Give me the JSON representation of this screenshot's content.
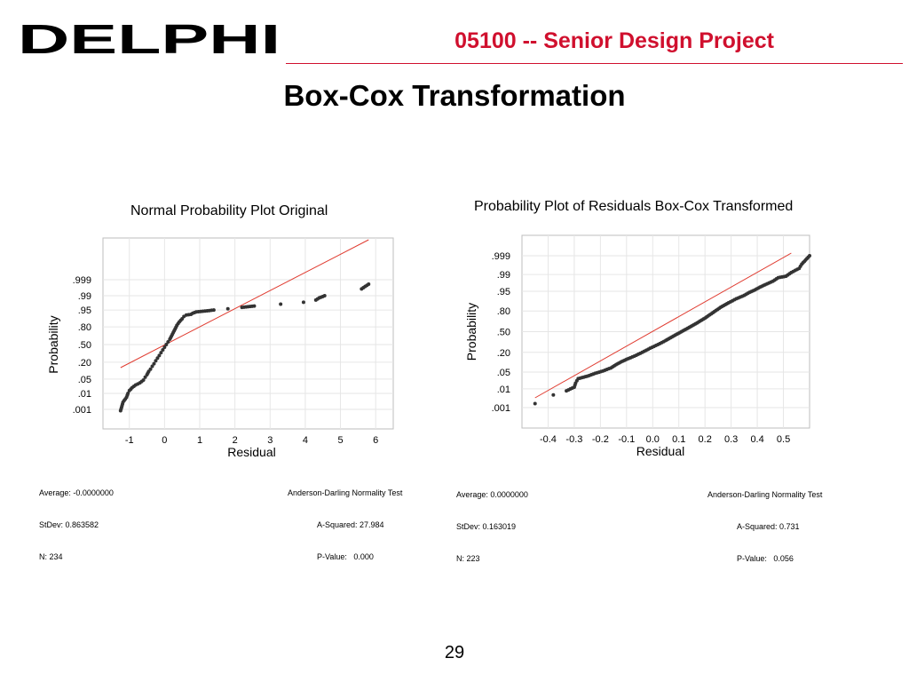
{
  "header": {
    "brand": "DELPHI",
    "brand_color": "#000000",
    "project_title": "05100 -- Senior Design Project",
    "accent_color": "#d0102e"
  },
  "slide": {
    "title": "Box-Cox Transformation",
    "page_number": "29"
  },
  "chart_data": [
    {
      "type": "scatter",
      "title": "Normal Probability Plot Original",
      "xlabel": "Residual",
      "ylabel": "Probability",
      "y_scale": "normal-probability",
      "xlim": [
        -1.75,
        6.5
      ],
      "x_ticks": [
        -1,
        0,
        1,
        2,
        3,
        4,
        5,
        6
      ],
      "x_tick_labels": [
        "-1",
        "0",
        "1",
        "2",
        "3",
        "4",
        "5",
        "6"
      ],
      "y_ticks": [
        0.001,
        0.01,
        0.05,
        0.2,
        0.5,
        0.8,
        0.95,
        0.99,
        0.999
      ],
      "y_tick_labels": [
        ".001",
        ".01",
        ".05",
        ".20",
        ".50",
        ".80",
        ".95",
        ".99",
        ".999"
      ],
      "grid": true,
      "fit_line": {
        "color": "#e03c31",
        "x": [
          -1.25,
          5.8
        ]
      },
      "n": 234,
      "point_color": "#333333",
      "points": [
        [
          -1.25,
          0.0008
        ],
        [
          -1.18,
          0.003
        ],
        [
          -1.08,
          0.006
        ],
        [
          -1.04,
          0.01
        ],
        [
          -1.0,
          0.014
        ],
        [
          -0.92,
          0.02
        ],
        [
          -0.82,
          0.027
        ],
        [
          -0.7,
          0.034
        ],
        [
          -0.6,
          0.045
        ],
        [
          -0.55,
          0.06
        ],
        [
          -0.5,
          0.075
        ],
        [
          -0.45,
          0.1
        ],
        [
          -0.4,
          0.12
        ],
        [
          -0.35,
          0.15
        ],
        [
          -0.3,
          0.18
        ],
        [
          -0.25,
          0.22
        ],
        [
          -0.2,
          0.26
        ],
        [
          -0.15,
          0.3
        ],
        [
          -0.1,
          0.35
        ],
        [
          -0.05,
          0.4
        ],
        [
          0.0,
          0.45
        ],
        [
          0.05,
          0.5
        ],
        [
          0.1,
          0.55
        ],
        [
          0.15,
          0.6
        ],
        [
          0.2,
          0.66
        ],
        [
          0.25,
          0.72
        ],
        [
          0.3,
          0.77
        ],
        [
          0.35,
          0.82
        ],
        [
          0.42,
          0.86
        ],
        [
          0.5,
          0.89
        ],
        [
          0.55,
          0.91
        ],
        [
          0.62,
          0.92
        ],
        [
          0.75,
          0.925
        ],
        [
          0.8,
          0.932
        ],
        [
          0.9,
          0.94
        ],
        [
          1.15,
          0.945
        ],
        [
          1.4,
          0.95
        ],
        [
          1.8,
          0.956
        ],
        [
          2.2,
          0.962
        ],
        [
          2.55,
          0.967
        ],
        [
          3.3,
          0.973
        ],
        [
          3.95,
          0.978
        ],
        [
          4.3,
          0.983
        ],
        [
          4.4,
          0.987
        ],
        [
          4.55,
          0.99
        ],
        [
          5.6,
          0.996
        ],
        [
          5.8,
          0.998
        ]
      ],
      "stats": {
        "average_label": "Average: -0.0000000",
        "stdev_label": "StDev: 0.863582",
        "n_label": "N: 234",
        "test_label": "Anderson-Darling Normality Test",
        "asq_label": "A-Squared: 27.984",
        "p_label": "P-Value:   0.000"
      }
    },
    {
      "type": "scatter",
      "title": "Probability Plot of Residuals Box-Cox Transformed",
      "xlabel": "Residual",
      "ylabel": "Probability",
      "y_scale": "normal-probability",
      "xlim": [
        -0.5,
        0.6
      ],
      "x_ticks": [
        -0.4,
        -0.3,
        -0.2,
        -0.1,
        0.0,
        0.1,
        0.2,
        0.3,
        0.4,
        0.5
      ],
      "x_tick_labels": [
        "-0.4",
        "-0.3",
        "-0.2",
        "-0.1",
        "0.0",
        "0.1",
        "0.2",
        "0.3",
        "0.4",
        "0.5"
      ],
      "y_ticks": [
        0.001,
        0.01,
        0.05,
        0.2,
        0.5,
        0.8,
        0.95,
        0.99,
        0.999
      ],
      "y_tick_labels": [
        ".001",
        ".01",
        ".05",
        ".20",
        ".50",
        ".80",
        ".95",
        ".99",
        ".999"
      ],
      "grid": true,
      "fit_line": {
        "color": "#e03c31",
        "x": [
          -0.45,
          0.53
        ]
      },
      "n": 223,
      "point_color": "#333333",
      "points": [
        [
          -0.45,
          0.0017
        ],
        [
          -0.38,
          0.005
        ],
        [
          -0.33,
          0.008
        ],
        [
          -0.3,
          0.012
        ],
        [
          -0.295,
          0.018
        ],
        [
          -0.29,
          0.023
        ],
        [
          -0.285,
          0.028
        ],
        [
          -0.25,
          0.035
        ],
        [
          -0.22,
          0.045
        ],
        [
          -0.19,
          0.055
        ],
        [
          -0.16,
          0.07
        ],
        [
          -0.14,
          0.09
        ],
        [
          -0.12,
          0.11
        ],
        [
          -0.1,
          0.13
        ],
        [
          -0.07,
          0.16
        ],
        [
          -0.04,
          0.2
        ],
        [
          -0.01,
          0.25
        ],
        [
          0.02,
          0.3
        ],
        [
          0.05,
          0.36
        ],
        [
          0.08,
          0.43
        ],
        [
          0.11,
          0.5
        ],
        [
          0.14,
          0.57
        ],
        [
          0.17,
          0.64
        ],
        [
          0.2,
          0.71
        ],
        [
          0.23,
          0.78
        ],
        [
          0.26,
          0.84
        ],
        [
          0.29,
          0.88
        ],
        [
          0.32,
          0.91
        ],
        [
          0.35,
          0.93
        ],
        [
          0.37,
          0.945
        ],
        [
          0.39,
          0.955
        ],
        [
          0.41,
          0.965
        ],
        [
          0.43,
          0.972
        ],
        [
          0.46,
          0.98
        ],
        [
          0.48,
          0.986
        ],
        [
          0.51,
          0.988
        ],
        [
          0.53,
          0.992
        ],
        [
          0.56,
          0.995
        ],
        [
          0.57,
          0.997
        ],
        [
          0.6,
          0.999
        ]
      ],
      "stats": {
        "average_label": "Average: 0.0000000",
        "stdev_label": "StDev: 0.163019",
        "n_label": "N: 223",
        "test_label": "Anderson-Darling Normality Test",
        "asq_label": "A-Squared: 0.731",
        "p_label": "P-Value:   0.056"
      }
    }
  ]
}
